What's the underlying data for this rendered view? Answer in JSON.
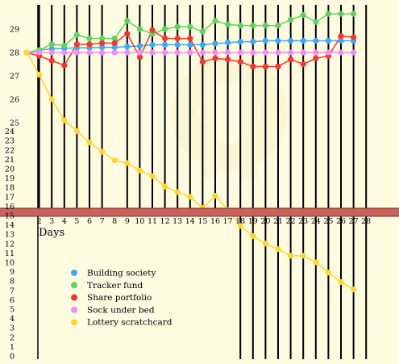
{
  "chart_data": {
    "type": "line",
    "xlabel": "Days",
    "ylabel": "",
    "x_tick_labels": [
      2,
      3,
      4,
      5,
      6,
      7,
      8,
      9,
      10,
      11,
      12,
      13,
      14,
      15,
      16,
      17,
      18,
      19,
      20,
      21,
      22,
      23,
      24,
      25,
      26,
      27,
      28
    ],
    "y_tick_labels_upper": [
      25,
      26,
      27,
      28,
      29
    ],
    "y_tick_labels_lower": [
      0,
      1,
      2,
      3,
      4,
      5,
      6,
      7,
      8,
      9,
      10,
      11,
      12,
      13,
      14,
      15,
      16,
      17,
      18,
      19,
      20,
      21,
      22,
      23,
      24
    ],
    "x_range": [
      1,
      28.5
    ],
    "y_range": [
      0,
      29.5
    ],
    "grid": "vertical lines at each day",
    "legend_position": "bottom-left, below the axis",
    "series": [
      {
        "name": "Building society",
        "color": "#3fa9f5",
        "x": [
          1,
          2,
          3,
          4,
          5,
          6,
          7,
          8,
          9,
          10,
          11,
          12,
          13,
          14,
          15,
          16,
          17,
          18,
          19,
          20,
          21,
          22,
          23,
          24,
          25,
          26,
          27
        ],
        "y": [
          28,
          28.1,
          28.15,
          28.18,
          28.2,
          28.2,
          28.22,
          28.22,
          28.25,
          28.28,
          28.33,
          28.33,
          28.33,
          28.33,
          28.33,
          28.38,
          28.42,
          28.46,
          28.46,
          28.5,
          28.5,
          28.5,
          28.5,
          28.5,
          28.5,
          28.5,
          28.5
        ]
      },
      {
        "name": "Tracker fund",
        "color": "#5fd35f",
        "x": [
          1,
          2,
          3,
          4,
          5,
          6,
          7,
          8,
          9,
          10,
          11,
          12,
          13,
          14,
          15,
          16,
          17,
          18,
          19,
          20,
          21,
          22,
          23,
          24,
          25,
          26,
          27
        ],
        "y": [
          28,
          28.1,
          28.35,
          28.3,
          28.75,
          28.6,
          28.6,
          28.6,
          29.35,
          29,
          28.8,
          29,
          29.1,
          29.1,
          28.9,
          29.35,
          29.2,
          29.15,
          29.15,
          29.15,
          29.15,
          29.4,
          29.6,
          29.3,
          29.65,
          29.65,
          29.65
        ]
      },
      {
        "name": "Share portfolio",
        "color": "#f5362e",
        "x": [
          1,
          2,
          3,
          4,
          5,
          6,
          7,
          8,
          9,
          10,
          11,
          12,
          13,
          14,
          15,
          16,
          17,
          18,
          19,
          20,
          21,
          22,
          23,
          24,
          25,
          26,
          27
        ],
        "y": [
          28,
          27.85,
          27.65,
          27.45,
          28.35,
          28.35,
          28.4,
          28.4,
          28.8,
          27.8,
          28.95,
          28.6,
          28.6,
          28.6,
          27.6,
          27.75,
          27.7,
          27.6,
          27.4,
          27.4,
          27.4,
          27.7,
          27.5,
          27.75,
          27.85,
          28.7,
          28.65
        ]
      },
      {
        "name": "Sock under bed",
        "color": "#f08ef0",
        "x": [
          1,
          2,
          3,
          4,
          5,
          6,
          7,
          8,
          9,
          10,
          11,
          12,
          13,
          14,
          15,
          16,
          17,
          18,
          19,
          20,
          21,
          22,
          23,
          24,
          25,
          26,
          27
        ],
        "y": [
          28,
          28,
          28,
          28,
          28,
          28,
          28,
          28,
          28,
          28,
          28,
          28,
          28,
          28,
          28,
          28,
          28,
          28,
          28,
          28,
          28,
          28,
          28,
          28,
          28,
          28,
          28
        ]
      },
      {
        "name": "Lottery scratchcard",
        "color": "#ffd52e",
        "x": [
          1,
          2,
          3,
          4,
          5,
          6,
          7,
          8,
          9,
          10,
          11,
          12,
          13,
          14,
          15,
          16,
          17,
          18,
          19,
          20,
          21,
          22,
          23,
          24,
          25,
          26,
          27
        ],
        "y": [
          28,
          27.05,
          26.0,
          25.1,
          24.0,
          22.8,
          21.8,
          20.9,
          20.6,
          19.8,
          19.2,
          18.1,
          17.5,
          17.0,
          15.8,
          17.1,
          15.6,
          13.9,
          12.8,
          12.0,
          11.4,
          10.7,
          10.7,
          10.0,
          8.9,
          7.9,
          7.1
        ]
      }
    ]
  }
}
